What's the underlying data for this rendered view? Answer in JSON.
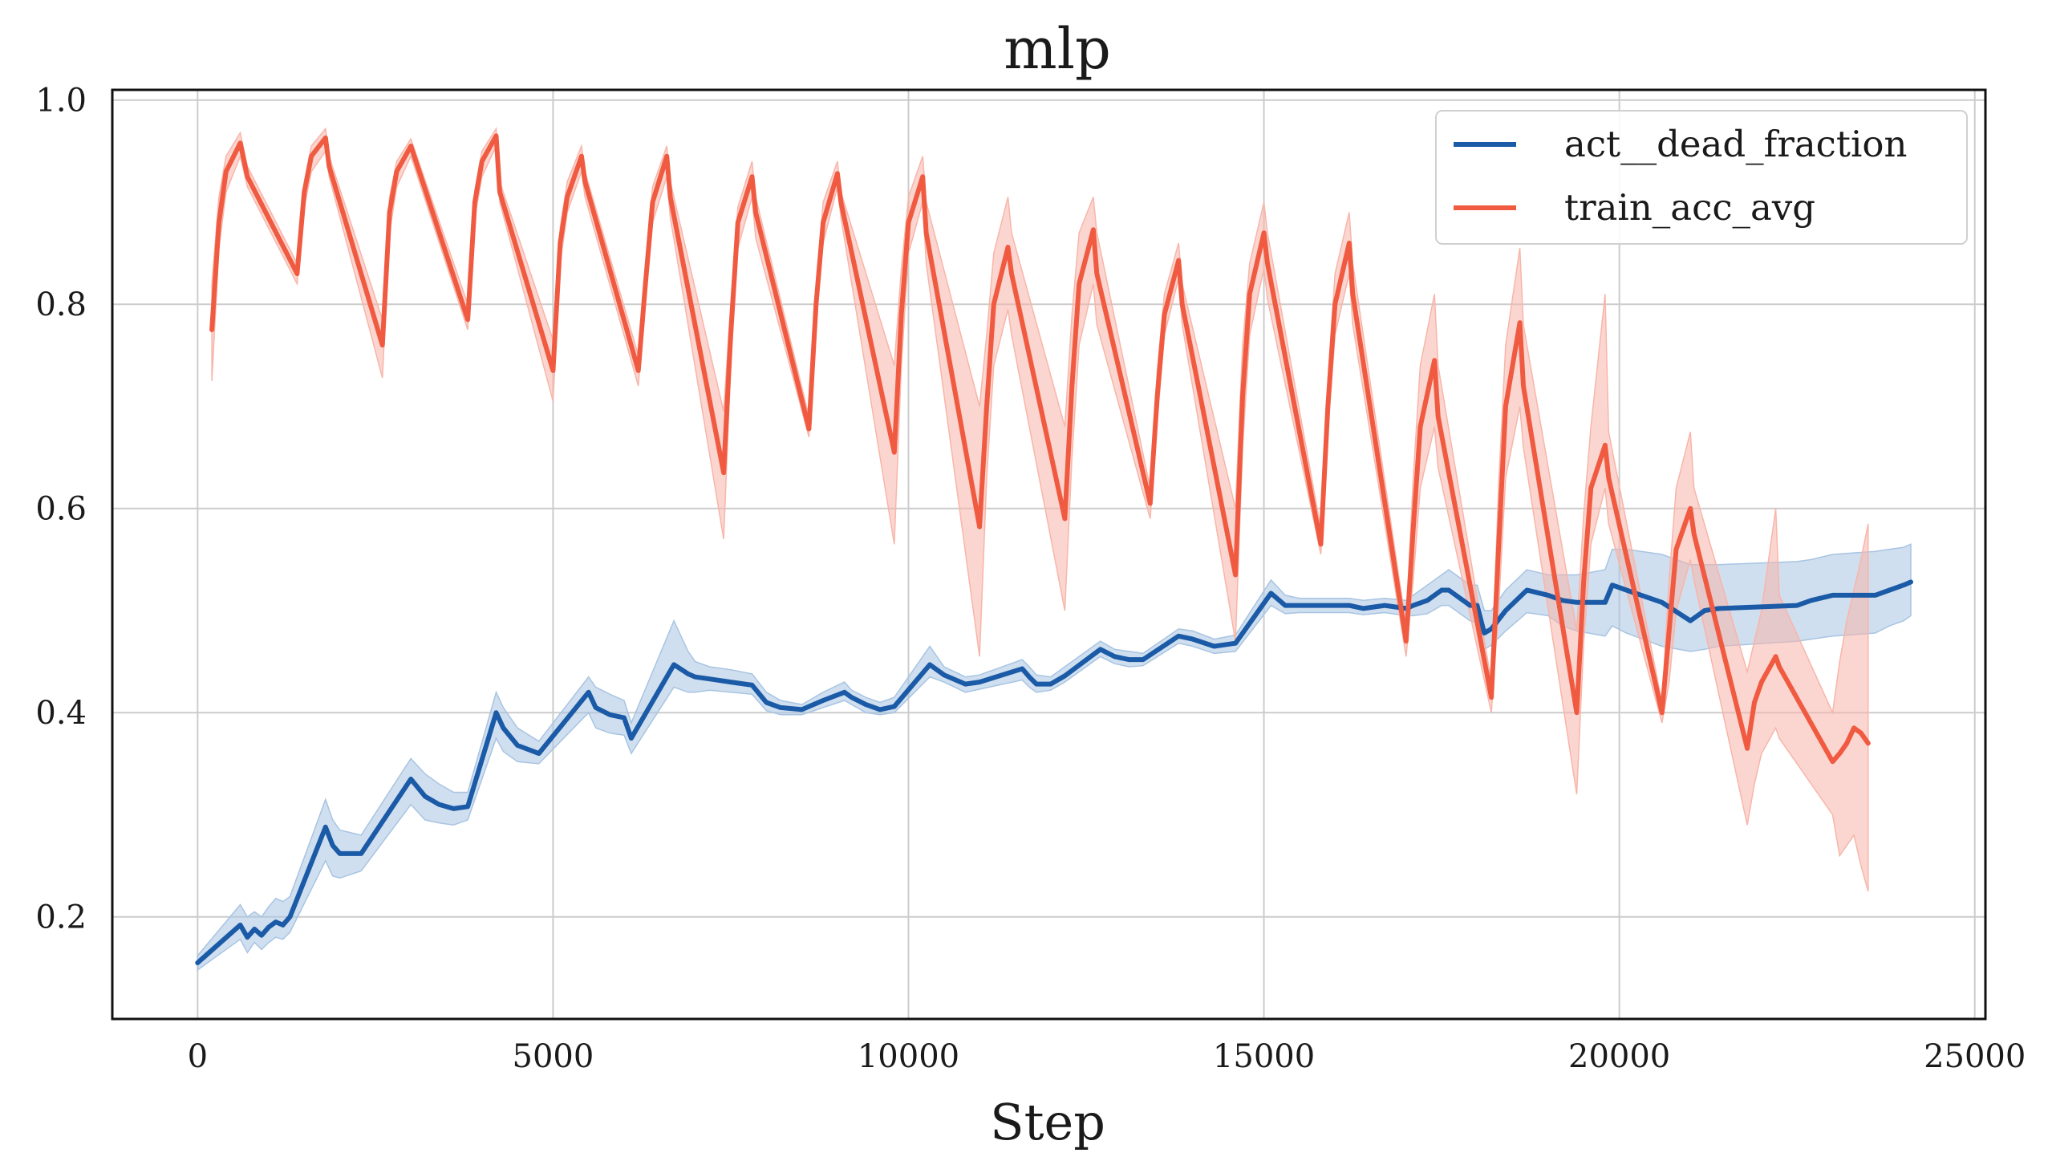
{
  "chart_data": {
    "type": "line",
    "title": "mlp",
    "xlabel": "Step",
    "ylabel": "",
    "xlim": [
      -1200,
      25150
    ],
    "ylim": [
      0.1,
      1.01
    ],
    "xticks": [
      0,
      5000,
      10000,
      15000,
      20000,
      25000
    ],
    "xtick_labels": [
      "0",
      "5000",
      "10000",
      "15000",
      "20000",
      "25000"
    ],
    "yticks": [
      0.2,
      0.4,
      0.6,
      0.8,
      1.0
    ],
    "ytick_labels": [
      "0.2",
      "0.4",
      "0.6",
      "0.8",
      "1.0"
    ],
    "grid": true,
    "legend_position": "top-right",
    "series": [
      {
        "name": "act__dead_fraction",
        "color": "#1a5aa6",
        "band_color": "#a8c4e2",
        "x": [
          0,
          600,
          700,
          800,
          900,
          1000,
          1100,
          1200,
          1300,
          1800,
          1900,
          2000,
          2300,
          3000,
          3200,
          3400,
          3600,
          3800,
          4200,
          4300,
          4500,
          4800,
          5500,
          5600,
          5800,
          6000,
          6100,
          6700,
          6900,
          7000,
          7200,
          7500,
          7800,
          8000,
          8200,
          8500,
          8800,
          9100,
          9200,
          9400,
          9600,
          9800,
          10300,
          10500,
          10800,
          11000,
          11600,
          11700,
          11800,
          12000,
          12200,
          12700,
          12900,
          13100,
          13300,
          13800,
          14000,
          14300,
          14600,
          15100,
          15300,
          15500,
          16200,
          16400,
          16700,
          17000,
          17100,
          17300,
          17500,
          17600,
          17900,
          18000,
          18100,
          18200,
          18400,
          18700,
          19000,
          19200,
          19400,
          19800,
          19900,
          20100,
          20600,
          21000,
          21200,
          21400,
          22500,
          22700,
          23000,
          23600,
          23800,
          24000,
          24100
        ],
        "values": [
          0.155,
          0.192,
          0.18,
          0.188,
          0.182,
          0.19,
          0.195,
          0.192,
          0.2,
          0.288,
          0.27,
          0.262,
          0.262,
          0.335,
          0.318,
          0.31,
          0.306,
          0.308,
          0.4,
          0.385,
          0.368,
          0.36,
          0.42,
          0.405,
          0.398,
          0.395,
          0.375,
          0.447,
          0.438,
          0.435,
          0.433,
          0.43,
          0.427,
          0.41,
          0.405,
          0.403,
          0.412,
          0.42,
          0.415,
          0.408,
          0.403,
          0.406,
          0.447,
          0.437,
          0.428,
          0.43,
          0.443,
          0.435,
          0.428,
          0.428,
          0.436,
          0.462,
          0.455,
          0.452,
          0.452,
          0.475,
          0.472,
          0.465,
          0.468,
          0.517,
          0.505,
          0.505,
          0.505,
          0.502,
          0.505,
          0.502,
          0.505,
          0.51,
          0.52,
          0.52,
          0.505,
          0.505,
          0.478,
          0.482,
          0.5,
          0.52,
          0.515,
          0.51,
          0.508,
          0.508,
          0.525,
          0.52,
          0.508,
          0.49,
          0.5,
          0.502,
          0.505,
          0.51,
          0.515,
          0.515,
          0.52,
          0.525,
          0.528
        ],
        "lower": [
          0.148,
          0.178,
          0.165,
          0.175,
          0.168,
          0.175,
          0.18,
          0.178,
          0.185,
          0.255,
          0.24,
          0.238,
          0.245,
          0.31,
          0.295,
          0.292,
          0.29,
          0.295,
          0.375,
          0.362,
          0.352,
          0.35,
          0.4,
          0.385,
          0.38,
          0.378,
          0.36,
          0.425,
          0.42,
          0.42,
          0.422,
          0.42,
          0.418,
          0.402,
          0.398,
          0.398,
          0.405,
          0.412,
          0.408,
          0.4,
          0.398,
          0.4,
          0.435,
          0.43,
          0.42,
          0.423,
          0.432,
          0.425,
          0.42,
          0.422,
          0.43,
          0.455,
          0.448,
          0.445,
          0.446,
          0.468,
          0.465,
          0.458,
          0.46,
          0.505,
          0.497,
          0.498,
          0.498,
          0.496,
          0.498,
          0.495,
          0.495,
          0.497,
          0.505,
          0.505,
          0.49,
          0.488,
          0.462,
          0.466,
          0.48,
          0.498,
          0.495,
          0.485,
          0.48,
          0.475,
          0.485,
          0.478,
          0.465,
          0.46,
          0.462,
          0.465,
          0.47,
          0.472,
          0.475,
          0.478,
          0.485,
          0.49,
          0.495
        ],
        "upper": [
          0.162,
          0.212,
          0.2,
          0.205,
          0.2,
          0.21,
          0.218,
          0.215,
          0.22,
          0.315,
          0.295,
          0.285,
          0.28,
          0.355,
          0.34,
          0.33,
          0.322,
          0.322,
          0.42,
          0.405,
          0.385,
          0.372,
          0.435,
          0.425,
          0.418,
          0.412,
          0.39,
          0.49,
          0.46,
          0.45,
          0.445,
          0.442,
          0.438,
          0.42,
          0.412,
          0.408,
          0.42,
          0.43,
          0.422,
          0.415,
          0.41,
          0.415,
          0.465,
          0.445,
          0.435,
          0.437,
          0.452,
          0.445,
          0.437,
          0.435,
          0.445,
          0.47,
          0.462,
          0.46,
          0.458,
          0.482,
          0.48,
          0.472,
          0.476,
          0.53,
          0.515,
          0.512,
          0.512,
          0.51,
          0.512,
          0.51,
          0.515,
          0.525,
          0.535,
          0.54,
          0.525,
          0.525,
          0.5,
          0.5,
          0.52,
          0.54,
          0.535,
          0.535,
          0.535,
          0.54,
          0.56,
          0.56,
          0.555,
          0.545,
          0.545,
          0.545,
          0.548,
          0.55,
          0.555,
          0.558,
          0.56,
          0.562,
          0.565
        ]
      },
      {
        "name": "train_acc_avg",
        "color": "#f05a40",
        "band_color": "#f8b5a9",
        "x": [
          200,
          300,
          400,
          600,
          700,
          1400,
          1500,
          1600,
          1800,
          1850,
          2600,
          2700,
          2800,
          3000,
          3800,
          3900,
          4000,
          4200,
          4250,
          5000,
          5100,
          5200,
          5400,
          5450,
          6200,
          6300,
          6400,
          6600,
          6650,
          7400,
          7500,
          7600,
          7800,
          7850,
          8600,
          8700,
          8800,
          9000,
          9050,
          9800,
          9900,
          10000,
          10200,
          10250,
          11000,
          11100,
          11200,
          11400,
          11450,
          12200,
          12300,
          12400,
          12600,
          12650,
          13400,
          13500,
          13600,
          13800,
          13850,
          14600,
          14700,
          14800,
          15000,
          15050,
          15800,
          15900,
          16000,
          16200,
          16250,
          17000,
          17100,
          17200,
          17400,
          17450,
          18200,
          18300,
          18400,
          18600,
          18650,
          19400,
          19500,
          19600,
          19800,
          19850,
          20600,
          20700,
          20800,
          21000,
          21050,
          21800,
          21900,
          22000,
          22200,
          22250,
          23000,
          23100,
          23200,
          23300,
          23400,
          23500
        ],
        "values": [
          0.775,
          0.88,
          0.93,
          0.958,
          0.925,
          0.83,
          0.91,
          0.945,
          0.963,
          0.935,
          0.76,
          0.89,
          0.93,
          0.955,
          0.785,
          0.9,
          0.94,
          0.965,
          0.91,
          0.735,
          0.86,
          0.905,
          0.945,
          0.92,
          0.735,
          0.82,
          0.9,
          0.945,
          0.905,
          0.635,
          0.77,
          0.88,
          0.925,
          0.89,
          0.678,
          0.8,
          0.88,
          0.928,
          0.9,
          0.655,
          0.79,
          0.88,
          0.925,
          0.87,
          0.582,
          0.7,
          0.8,
          0.856,
          0.83,
          0.59,
          0.72,
          0.82,
          0.873,
          0.83,
          0.605,
          0.71,
          0.79,
          0.843,
          0.8,
          0.535,
          0.71,
          0.81,
          0.87,
          0.84,
          0.565,
          0.7,
          0.8,
          0.86,
          0.81,
          0.47,
          0.58,
          0.68,
          0.745,
          0.69,
          0.415,
          0.56,
          0.7,
          0.782,
          0.72,
          0.4,
          0.53,
          0.62,
          0.662,
          0.63,
          0.4,
          0.48,
          0.56,
          0.6,
          0.575,
          0.365,
          0.41,
          0.43,
          0.455,
          0.445,
          0.352,
          0.36,
          0.37,
          0.385,
          0.38,
          0.37
        ],
        "lower": [
          0.725,
          0.855,
          0.91,
          0.945,
          0.915,
          0.82,
          0.895,
          0.93,
          0.95,
          0.925,
          0.728,
          0.87,
          0.915,
          0.945,
          0.775,
          0.885,
          0.925,
          0.955,
          0.9,
          0.705,
          0.84,
          0.89,
          0.93,
          0.905,
          0.72,
          0.805,
          0.88,
          0.925,
          0.885,
          0.57,
          0.74,
          0.855,
          0.905,
          0.865,
          0.67,
          0.785,
          0.86,
          0.915,
          0.885,
          0.565,
          0.74,
          0.85,
          0.9,
          0.84,
          0.455,
          0.63,
          0.74,
          0.795,
          0.77,
          0.5,
          0.65,
          0.76,
          0.82,
          0.78,
          0.59,
          0.685,
          0.77,
          0.825,
          0.78,
          0.47,
          0.66,
          0.77,
          0.835,
          0.805,
          0.555,
          0.675,
          0.77,
          0.83,
          0.78,
          0.455,
          0.53,
          0.62,
          0.68,
          0.64,
          0.4,
          0.5,
          0.63,
          0.7,
          0.66,
          0.32,
          0.47,
          0.565,
          0.62,
          0.585,
          0.39,
          0.43,
          0.5,
          0.55,
          0.53,
          0.29,
          0.33,
          0.36,
          0.385,
          0.375,
          0.3,
          0.26,
          0.27,
          0.28,
          0.25,
          0.225
        ],
        "upper": [
          0.82,
          0.905,
          0.945,
          0.968,
          0.935,
          0.84,
          0.92,
          0.955,
          0.972,
          0.945,
          0.785,
          0.905,
          0.94,
          0.962,
          0.8,
          0.912,
          0.95,
          0.972,
          0.92,
          0.765,
          0.875,
          0.92,
          0.955,
          0.93,
          0.75,
          0.835,
          0.915,
          0.955,
          0.92,
          0.695,
          0.8,
          0.895,
          0.94,
          0.905,
          0.69,
          0.815,
          0.9,
          0.94,
          0.91,
          0.74,
          0.835,
          0.905,
          0.945,
          0.9,
          0.7,
          0.77,
          0.85,
          0.905,
          0.87,
          0.68,
          0.79,
          0.87,
          0.905,
          0.87,
          0.62,
          0.735,
          0.81,
          0.86,
          0.82,
          0.6,
          0.76,
          0.84,
          0.9,
          0.87,
          0.58,
          0.725,
          0.83,
          0.89,
          0.84,
          0.485,
          0.63,
          0.74,
          0.81,
          0.74,
          0.43,
          0.62,
          0.76,
          0.855,
          0.78,
          0.48,
          0.595,
          0.68,
          0.81,
          0.675,
          0.41,
          0.53,
          0.62,
          0.675,
          0.62,
          0.44,
          0.47,
          0.5,
          0.6,
          0.515,
          0.4,
          0.45,
          0.49,
          0.52,
          0.55,
          0.585
        ]
      }
    ]
  }
}
